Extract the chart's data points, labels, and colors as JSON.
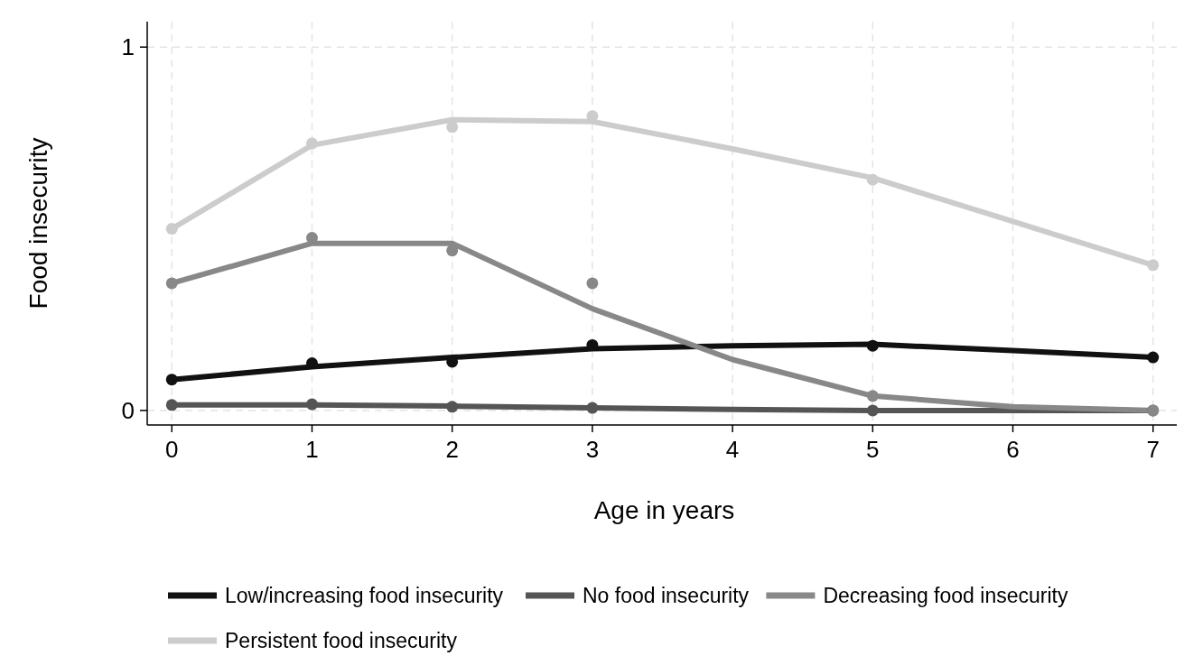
{
  "chart_data": {
    "type": "line",
    "xlabel": "Age in years",
    "ylabel": "Food insecurity",
    "xlim": [
      -0.15,
      7.15
    ],
    "xticks": [
      0,
      1,
      2,
      3,
      4,
      5,
      6,
      7
    ],
    "ylim": [
      -0.04,
      1.07
    ],
    "yticks": [
      0,
      1
    ],
    "grid": true,
    "legend": "bottom",
    "line_style": "solid",
    "series": [
      {
        "name": "Low/increasing food insecurity",
        "color": "#111111",
        "type": "line",
        "marker": "none",
        "x": [
          0,
          1,
          2,
          3,
          4,
          5,
          6,
          7
        ],
        "values": [
          0.085,
          0.12,
          0.146,
          0.17,
          0.178,
          0.182,
          0.165,
          0.146
        ]
      },
      {
        "name": "No food insecurity",
        "color": "#555555",
        "type": "line",
        "marker": "none",
        "x": [
          0,
          1,
          2,
          3,
          4,
          5,
          6,
          7
        ],
        "values": [
          0.015,
          0.015,
          0.012,
          0.007,
          0.003,
          0,
          0,
          0
        ]
      },
      {
        "name": "Decreasing food insecurity",
        "color": "#888888",
        "type": "line",
        "marker": "none",
        "x": [
          0,
          1,
          2,
          3,
          4,
          5,
          6,
          7
        ],
        "values": [
          0.35,
          0.46,
          0.46,
          0.28,
          0.14,
          0.04,
          0.01,
          0
        ]
      },
      {
        "name": "Persistent food insecurity",
        "color": "#cccccc",
        "type": "line",
        "marker": "none",
        "x": [
          0,
          1,
          2,
          3,
          4,
          5,
          6,
          7
        ],
        "values": [
          0.5,
          0.73,
          0.8,
          0.795,
          0.72,
          0.64,
          0.52,
          0.4
        ]
      },
      {
        "color": "#111111",
        "type": "scatter",
        "marker": "circle",
        "x": [
          0,
          1,
          2,
          3,
          5,
          7
        ],
        "values": [
          0.085,
          0.13,
          0.134,
          0.18,
          0.178,
          0.146
        ]
      },
      {
        "color": "#555555",
        "type": "scatter",
        "marker": "circle",
        "x": [
          0,
          1,
          2,
          3,
          5,
          7
        ],
        "values": [
          0.015,
          0.017,
          0.01,
          0.007,
          0,
          0
        ]
      },
      {
        "color": "#888888",
        "type": "scatter",
        "marker": "circle",
        "x": [
          0,
          1,
          2,
          3,
          5,
          7
        ],
        "values": [
          0.35,
          0.475,
          0.44,
          0.35,
          0.04,
          0
        ]
      },
      {
        "color": "#cccccc",
        "type": "scatter",
        "marker": "circle",
        "x": [
          0,
          1,
          2,
          3,
          5,
          7
        ],
        "values": [
          0.5,
          0.735,
          0.78,
          0.81,
          0.635,
          0.4
        ]
      }
    ]
  }
}
